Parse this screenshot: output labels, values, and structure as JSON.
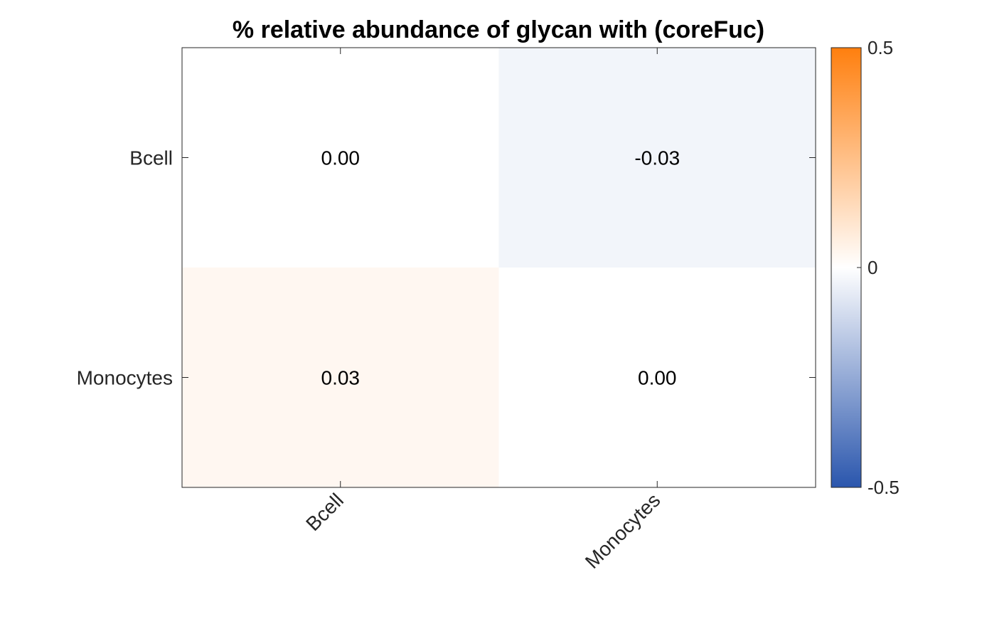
{
  "chart_data": {
    "type": "heatmap",
    "title": "% relative abundance of glycan with (coreFuc)",
    "rows": [
      "Bcell",
      "Monocytes"
    ],
    "columns": [
      "Bcell",
      "Monocytes"
    ],
    "values": [
      [
        0.0,
        -0.03
      ],
      [
        0.03,
        0.0
      ]
    ],
    "cell_labels": [
      [
        "0.00",
        "-0.03"
      ],
      [
        "0.03",
        "0.00"
      ]
    ],
    "colorbar": {
      "range": [
        -0.5,
        0.5
      ],
      "ticks": [
        0.5,
        0,
        -0.5
      ],
      "tick_labels": [
        "0.5",
        "0",
        "-0.5"
      ],
      "low_color": "#2a56ad",
      "mid_color": "#ffffff",
      "high_color": "#ff7f0e"
    },
    "xlabel": "",
    "ylabel": "",
    "grid": false
  }
}
